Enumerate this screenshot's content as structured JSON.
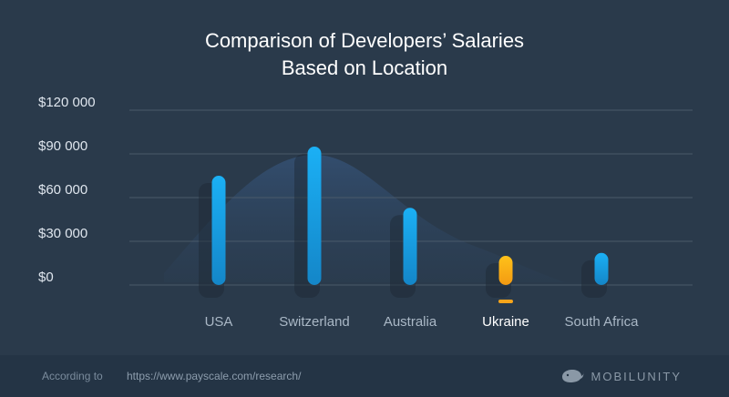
{
  "chart_data": {
    "type": "bar",
    "title": [
      "Comparison of Developers’ Salaries",
      "Based on Location"
    ],
    "categories": [
      "USA",
      "Switzerland",
      "Australia",
      "Ukraine",
      "South Africa"
    ],
    "values": [
      75000,
      95000,
      53000,
      20000,
      22000
    ],
    "highlighted_category": "Ukraine",
    "yticks": [
      "$0",
      "$30 000",
      "$60 000",
      "$90 000",
      "$120 000"
    ],
    "ylim": [
      0,
      120000
    ],
    "grid": true,
    "colors": {
      "bar": "#1aa3e8",
      "highlight": "#f7b21c",
      "background": "#2a3a4b",
      "grid": "#4a5a6a"
    }
  },
  "footer": {
    "label": "According to",
    "url": "https://www.payscale.com/research/",
    "brand": "MOBILUNITY",
    "brand_icon": "whale-icon"
  }
}
